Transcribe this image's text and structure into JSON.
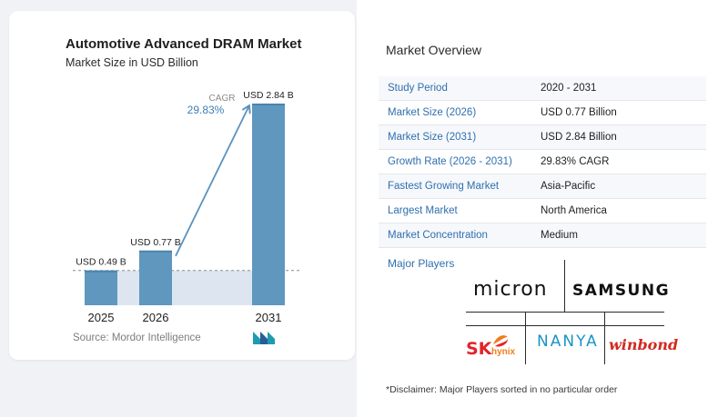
{
  "chart_data": {
    "type": "bar",
    "title": "Automotive Advanced DRAM Market",
    "subtitle": "Market Size in USD Billion",
    "categories": [
      "2025",
      "2026",
      "2031"
    ],
    "values": [
      0.49,
      0.77,
      2.84
    ],
    "data_labels": [
      "USD 0.49 B",
      "USD 0.77 B",
      "USD 2.84 B"
    ],
    "annotation": {
      "label": "CAGR",
      "value": "29.83%"
    },
    "ylim": [
      0,
      2.84
    ],
    "grid": false,
    "colors": {
      "bar": "#5f97bf",
      "bar_top": "#4a84ad",
      "band": "#dde6f0",
      "arrow": "#5b92bd",
      "cagr_value": "#3d7fb5",
      "dashed": "#8c8c8c"
    }
  },
  "source": "Source: Mordor Intelligence",
  "overview": {
    "title": "Market Overview",
    "rows": [
      {
        "label": "Study Period",
        "value": "2020 - 2031"
      },
      {
        "label": "Market Size (2026)",
        "value": "USD 0.77 Billion"
      },
      {
        "label": "Market Size (2031)",
        "value": "USD 2.84 Billion"
      },
      {
        "label": "Growth Rate (2026 - 2031)",
        "value": "29.83% CAGR"
      },
      {
        "label": "Fastest Growing Market",
        "value": "Asia-Pacific"
      },
      {
        "label": "Largest Market",
        "value": "North America"
      },
      {
        "label": "Market Concentration",
        "value": "Medium"
      }
    ]
  },
  "players": {
    "title": "Major Players",
    "logos": {
      "micron": "micron",
      "samsung": "SAMSUNG",
      "sk": "SK",
      "hynix": "hynix",
      "nanya": "NANYA",
      "winbond": "winbond"
    }
  },
  "disclaimer": "*Disclaimer: Major Players sorted in no particular order"
}
